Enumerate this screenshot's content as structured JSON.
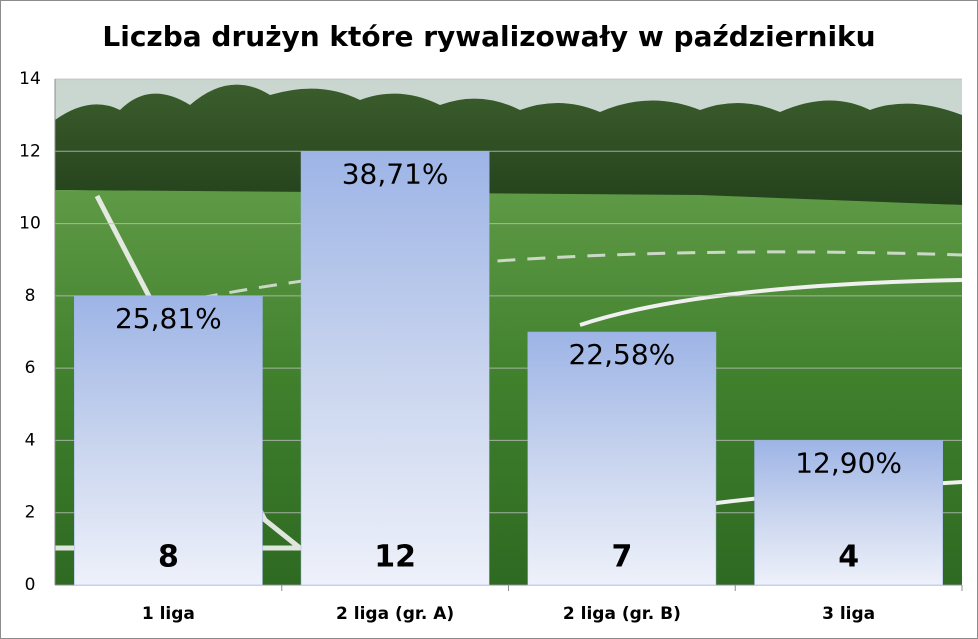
{
  "chart_data": {
    "type": "bar",
    "title": "Liczba drużyn które rywalizowały w październiku",
    "categories": [
      "1 liga",
      "2 liga (gr. A)",
      "2 liga (gr. B)",
      "3 liga"
    ],
    "values": [
      8,
      12,
      7,
      4
    ],
    "shares": {
      "values": [
        25.81,
        38.71,
        22.58,
        12.9
      ],
      "value_labels": [
        "25,81%",
        "38,71%",
        "22,58%",
        "12,90%"
      ]
    },
    "color": "#9db4e6",
    "ylim": [
      0,
      14
    ],
    "yticks": [
      0,
      2,
      4,
      6,
      8,
      10,
      12,
      14
    ],
    "grid": true
  }
}
